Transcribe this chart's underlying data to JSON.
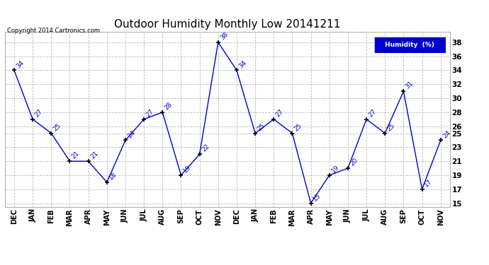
{
  "title": "Outdoor Humidity Monthly Low 20141211",
  "copyright": "Copyright 2014 Cartronics.com",
  "legend_label": "Humidity  (%)",
  "x_labels": [
    "DEC",
    "JAN",
    "FEB",
    "MAR",
    "APR",
    "MAY",
    "JUN",
    "JUL",
    "AUG",
    "SEP",
    "OCT",
    "NOV",
    "DEC",
    "JAN",
    "FEB",
    "MAR",
    "APR",
    "MAY",
    "JUN",
    "JUL",
    "AUG",
    "SEP",
    "OCT",
    "NOV"
  ],
  "y_values": [
    34,
    27,
    25,
    21,
    21,
    18,
    24,
    27,
    28,
    19,
    22,
    38,
    34,
    25,
    27,
    25,
    15,
    19,
    20,
    27,
    25,
    31,
    17,
    24
  ],
  "y_ticks": [
    15,
    17,
    19,
    21,
    23,
    25,
    26,
    28,
    30,
    32,
    34,
    36,
    38
  ],
  "ylim": [
    14.5,
    39.5
  ],
  "line_color": "#0000cc",
  "marker_color": "#000000",
  "label_color": "#0000cc",
  "background_color": "#ffffff",
  "grid_color": "#bbbbbb",
  "title_fontsize": 11,
  "legend_bg": "#0000cc",
  "legend_fg": "#ffffff"
}
